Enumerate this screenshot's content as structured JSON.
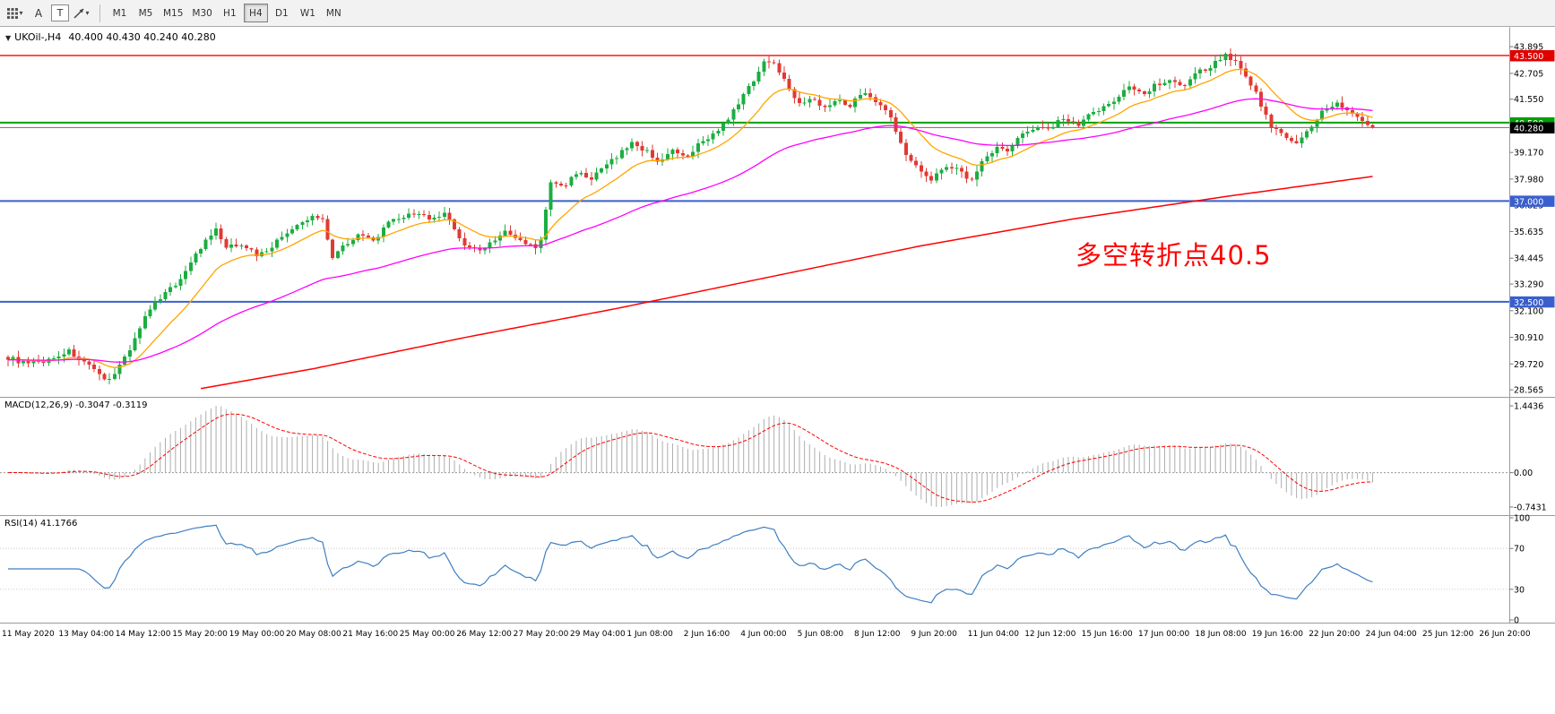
{
  "toolbar": {
    "tools": [
      {
        "name": "chart-settings",
        "label": ""
      },
      {
        "name": "cursor",
        "label": "A"
      },
      {
        "name": "text",
        "label": "T"
      },
      {
        "name": "drawings",
        "label": ""
      }
    ],
    "timeframes": [
      "M1",
      "M5",
      "M15",
      "M30",
      "H1",
      "H4",
      "D1",
      "W1",
      "MN"
    ],
    "active_timeframe": "H4"
  },
  "chart_data": {
    "type": "candlestick",
    "symbol_title": "UKOil-,H4",
    "ohlc_text": "40.400 40.430 40.240 40.280",
    "last_ohlc": {
      "open": 40.4,
      "high": 40.43,
      "low": 40.24,
      "close": 40.28
    },
    "bars": 270,
    "colors": {
      "up": "#1CAD41",
      "down": "#E03A34"
    },
    "price_waypoints": [
      [
        0,
        30.0
      ],
      [
        4,
        29.7
      ],
      [
        8,
        29.9
      ],
      [
        12,
        30.3
      ],
      [
        16,
        29.6
      ],
      [
        19,
        29.0
      ],
      [
        21,
        29.3
      ],
      [
        24,
        30.4
      ],
      [
        27,
        31.8
      ],
      [
        31,
        33.0
      ],
      [
        33,
        33.2
      ],
      [
        36,
        34.3
      ],
      [
        39,
        35.2
      ],
      [
        41,
        35.7
      ],
      [
        43,
        34.9
      ],
      [
        46,
        35.1
      ],
      [
        49,
        34.6
      ],
      [
        51,
        34.8
      ],
      [
        55,
        35.6
      ],
      [
        58,
        36.0
      ],
      [
        60,
        36.3
      ],
      [
        62,
        36.2
      ],
      [
        64,
        34.5
      ],
      [
        66,
        35.0
      ],
      [
        69,
        35.5
      ],
      [
        72,
        35.2
      ],
      [
        75,
        36.0
      ],
      [
        78,
        36.3
      ],
      [
        81,
        36.5
      ],
      [
        83,
        36.1
      ],
      [
        86,
        36.4
      ],
      [
        88,
        35.8
      ],
      [
        90,
        35.0
      ],
      [
        93,
        34.8
      ],
      [
        96,
        35.3
      ],
      [
        98,
        35.6
      ],
      [
        101,
        35.2
      ],
      [
        104,
        34.9
      ],
      [
        105,
        35.3
      ],
      [
        107,
        37.8
      ],
      [
        110,
        37.7
      ],
      [
        112,
        38.3
      ],
      [
        115,
        38.0
      ],
      [
        118,
        38.6
      ],
      [
        120,
        39.0
      ],
      [
        123,
        39.6
      ],
      [
        126,
        39.2
      ],
      [
        128,
        38.8
      ],
      [
        131,
        39.2
      ],
      [
        134,
        38.9
      ],
      [
        136,
        39.5
      ],
      [
        139,
        40.0
      ],
      [
        142,
        40.6
      ],
      [
        144,
        41.4
      ],
      [
        147,
        42.4
      ],
      [
        149,
        43.3
      ],
      [
        151,
        43.1
      ],
      [
        153,
        42.5
      ],
      [
        156,
        41.3
      ],
      [
        158,
        41.6
      ],
      [
        161,
        41.2
      ],
      [
        164,
        41.5
      ],
      [
        166,
        41.3
      ],
      [
        169,
        41.9
      ],
      [
        172,
        41.3
      ],
      [
        174,
        40.7
      ],
      [
        177,
        39.0
      ],
      [
        180,
        38.4
      ],
      [
        182,
        38.0
      ],
      [
        185,
        38.6
      ],
      [
        188,
        38.3
      ],
      [
        190,
        37.9
      ],
      [
        192,
        38.8
      ],
      [
        195,
        39.4
      ],
      [
        197,
        39.2
      ],
      [
        200,
        40.0
      ],
      [
        203,
        40.4
      ],
      [
        205,
        40.2
      ],
      [
        208,
        40.7
      ],
      [
        211,
        40.3
      ],
      [
        213,
        40.8
      ],
      [
        216,
        41.2
      ],
      [
        219,
        41.7
      ],
      [
        221,
        42.1
      ],
      [
        224,
        41.8
      ],
      [
        226,
        42.2
      ],
      [
        229,
        42.4
      ],
      [
        232,
        42.2
      ],
      [
        234,
        42.7
      ],
      [
        237,
        43.0
      ],
      [
        240,
        43.6
      ],
      [
        242,
        43.2
      ],
      [
        244,
        42.6
      ],
      [
        246,
        41.8
      ],
      [
        249,
        40.3
      ],
      [
        251,
        40.0
      ],
      [
        254,
        39.6
      ],
      [
        257,
        40.3
      ],
      [
        259,
        41.0
      ],
      [
        262,
        41.3
      ],
      [
        264,
        41.1
      ],
      [
        266,
        40.7
      ],
      [
        268,
        40.4
      ],
      [
        269,
        40.28
      ]
    ],
    "moving_averages": {
      "fast_period": 14,
      "fast_color": "#FFA500",
      "medium_period": 60,
      "medium_color": "#FF00FF",
      "slow_color": "#FF0000",
      "slow_waypoints": [
        [
          38,
          28.62
        ],
        [
          60,
          29.5
        ],
        [
          90,
          30.9
        ],
        [
          120,
          32.2
        ],
        [
          150,
          33.6
        ],
        [
          180,
          35.0
        ],
        [
          210,
          36.2
        ],
        [
          240,
          37.2
        ],
        [
          269,
          38.1
        ]
      ]
    },
    "horizontal_lines": [
      {
        "price": 43.5,
        "color": "#FF0000",
        "width": 1.4
      },
      {
        "price": 40.5,
        "color": "#00A000",
        "width": 2
      },
      {
        "price": 40.28,
        "color": "#6E6E6E",
        "width": 1
      },
      {
        "price": 37.0,
        "color": "#3A5FCD",
        "width": 2
      },
      {
        "price": 32.5,
        "color": "#3A5FCD",
        "width": 2
      }
    ],
    "badges": [
      {
        "label": "43.500",
        "price": 43.5,
        "color": "#E00000"
      },
      {
        "label": "40.500",
        "price": 40.5,
        "color": "#00A000"
      },
      {
        "label": "40.280",
        "price": 40.28,
        "color": "#000000"
      },
      {
        "label": "37.000",
        "price": 37.0,
        "color": "#3A5FCD"
      },
      {
        "label": "32.500",
        "price": 32.5,
        "color": "#3A5FCD"
      }
    ],
    "y_axis": {
      "labels": [
        "43.895",
        "42.705",
        "41.550",
        "39.170",
        "37.980",
        "36.825",
        "35.635",
        "34.445",
        "33.290",
        "32.100",
        "30.910",
        "29.720",
        "28.565"
      ]
    },
    "x_axis": {
      "labels": [
        "11 May 2020",
        "13 May 04:00",
        "14 May 12:00",
        "15 May 20:00",
        "19 May 00:00",
        "20 May 08:00",
        "21 May 16:00",
        "25 May 00:00",
        "26 May 12:00",
        "27 May 20:00",
        "29 May 04:00",
        "1 Jun 08:00",
        "2 Jun 16:00",
        "4 Jun 00:00",
        "5 Jun 08:00",
        "8 Jun 12:00",
        "9 Jun 20:00",
        "11 Jun 04:00",
        "12 Jun 12:00",
        "15 Jun 16:00",
        "17 Jun 00:00",
        "18 Jun 08:00",
        "19 Jun 16:00",
        "22 Jun 20:00",
        "24 Jun 04:00",
        "25 Jun 12:00",
        "26 Jun 20:00"
      ]
    },
    "annotation": {
      "text": "多空转折点40.5",
      "color": "#FF0000"
    },
    "indicators": {
      "macd": {
        "title": "MACD(12,26,9)",
        "values_text": "-0.3047 -0.3119",
        "fast": 12,
        "slow": 26,
        "signal": 9,
        "axis_labels": [
          "1.4436",
          "0.00",
          "-0.7431"
        ],
        "axis_max": 1.4436,
        "axis_min": -0.7431,
        "histogram_color": "#ADADAD",
        "signal_color": "#FF0000"
      },
      "rsi": {
        "title": "RSI(14)",
        "value_text": "41.1766",
        "period": 14,
        "axis_labels": [
          "100",
          "70",
          "30",
          "0"
        ],
        "levels": [
          70,
          30
        ],
        "color": "#3E7FC1"
      }
    }
  }
}
